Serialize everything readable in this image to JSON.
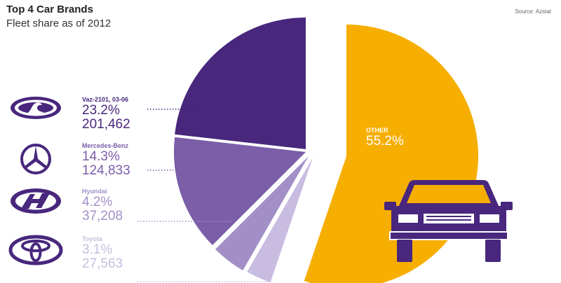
{
  "header": {
    "title": "Top 4 Car Brands",
    "subtitle": "Fleet share as of 2012",
    "source": "Source: Azstat"
  },
  "colors": {
    "vaz": "#48277d",
    "mercedes": "#7b5da8",
    "hyundai": "#a28fc7",
    "toyota": "#c8bde0",
    "other": "#f6ae00",
    "ink": "#4a2a80"
  },
  "icons": [
    "lada-logo-icon",
    "mercedes-logo-icon",
    "hyundai-logo-icon",
    "toyota-logo-icon",
    "car-front-icon"
  ],
  "brands": [
    {
      "name": "Vaz-2101, 03-06",
      "pct": "23.2%",
      "count": "201,462"
    },
    {
      "name": "Mercedes-Benz",
      "pct": "14.3%",
      "count": "124,833"
    },
    {
      "name": "Hyundai",
      "pct": "4.2%",
      "count": "37,208"
    },
    {
      "name": "Toyota",
      "pct": "3.1%",
      "count": "27,563"
    }
  ],
  "other": {
    "name": "OTHER",
    "pct": "55.2%"
  },
  "chart_data": {
    "type": "pie",
    "title": "Top 4 Car Brands",
    "subtitle": "Fleet share as of 2012",
    "labels": [
      "Vaz-2101, 03-06",
      "Mercedes-Benz",
      "Hyundai",
      "Toyota",
      "Other"
    ],
    "values": [
      23.2,
      14.3,
      4.2,
      3.1,
      55.2
    ],
    "counts": [
      201462,
      124833,
      37208,
      27563,
      null
    ]
  }
}
